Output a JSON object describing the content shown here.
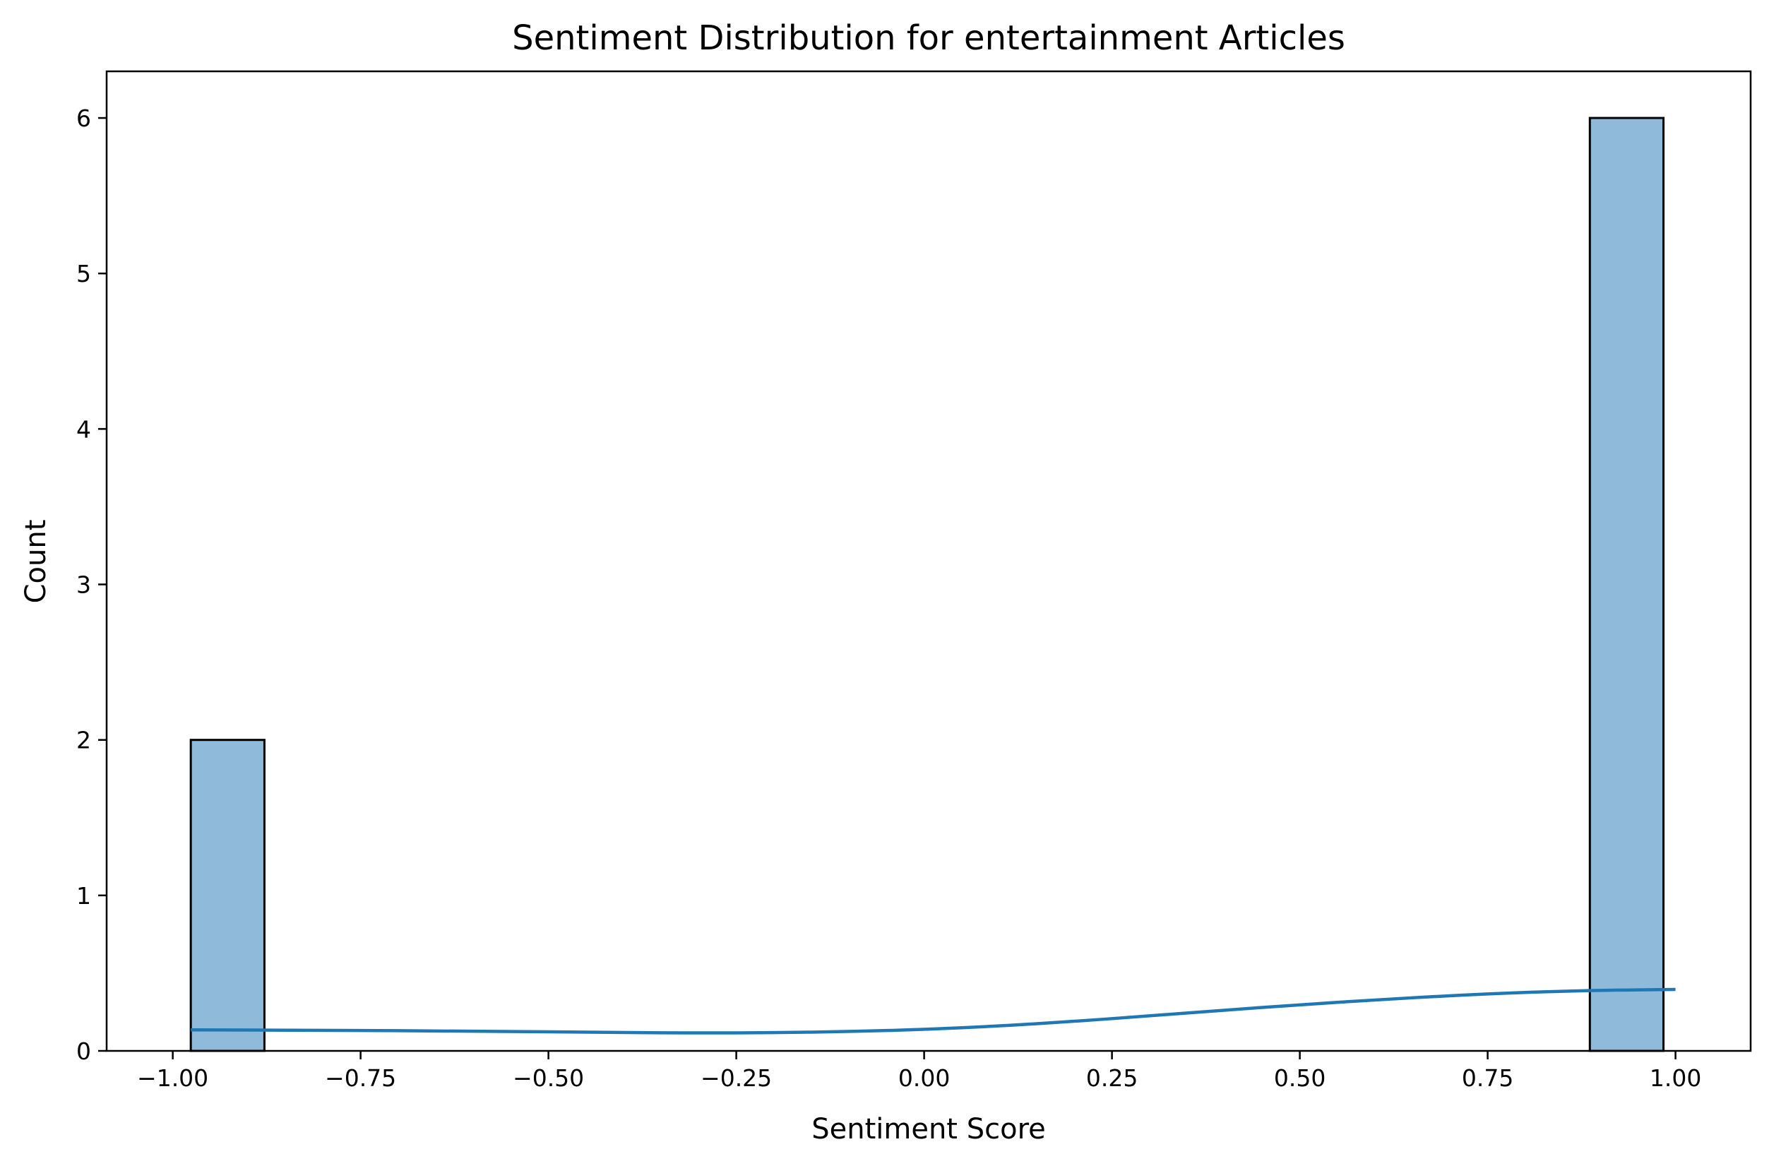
{
  "chart_data": {
    "type": "bar",
    "title": "Sentiment Distribution for entertainment Articles",
    "xlabel": "Sentiment Score",
    "ylabel": "Count",
    "xlim": [
      -1.088,
      1.1
    ],
    "ylim": [
      0,
      6.3
    ],
    "x_ticks": [
      -1.0,
      -0.75,
      -0.5,
      -0.25,
      0.0,
      0.25,
      0.5,
      0.75,
      1.0
    ],
    "x_tick_labels": [
      "−1.00",
      "−0.75",
      "−0.50",
      "−0.25",
      "0.00",
      "0.25",
      "0.50",
      "0.75",
      "1.00"
    ],
    "y_ticks": [
      0,
      1,
      2,
      3,
      4,
      5,
      6
    ],
    "y_tick_labels": [
      "0",
      "1",
      "2",
      "3",
      "4",
      "5",
      "6"
    ],
    "bins": [
      {
        "x0": -0.976,
        "x1": -0.878,
        "count": 2
      },
      {
        "x0": -0.878,
        "x1": -0.78,
        "count": 0
      },
      {
        "x0": -0.78,
        "x1": -0.682,
        "count": 0
      },
      {
        "x0": -0.682,
        "x1": -0.584,
        "count": 0
      },
      {
        "x0": -0.584,
        "x1": -0.486,
        "count": 0
      },
      {
        "x0": -0.486,
        "x1": -0.388,
        "count": 0
      },
      {
        "x0": -0.388,
        "x1": -0.29,
        "count": 0
      },
      {
        "x0": -0.29,
        "x1": -0.192,
        "count": 0
      },
      {
        "x0": -0.192,
        "x1": -0.094,
        "count": 0
      },
      {
        "x0": -0.094,
        "x1": 0.004,
        "count": 0
      },
      {
        "x0": 0.004,
        "x1": 0.102,
        "count": 0
      },
      {
        "x0": 0.102,
        "x1": 0.2,
        "count": 0
      },
      {
        "x0": 0.2,
        "x1": 0.298,
        "count": 0
      },
      {
        "x0": 0.298,
        "x1": 0.396,
        "count": 0
      },
      {
        "x0": 0.396,
        "x1": 0.494,
        "count": 0
      },
      {
        "x0": 0.494,
        "x1": 0.592,
        "count": 0
      },
      {
        "x0": 0.592,
        "x1": 0.69,
        "count": 0
      },
      {
        "x0": 0.69,
        "x1": 0.788,
        "count": 0
      },
      {
        "x0": 0.788,
        "x1": 0.886,
        "count": 0
      },
      {
        "x0": 0.886,
        "x1": 0.984,
        "count": 6
      }
    ],
    "kde": {
      "x": [
        -0.976,
        -0.8,
        -0.6,
        -0.4,
        -0.3,
        -0.2,
        -0.1,
        0.0,
        0.1,
        0.2,
        0.3,
        0.4,
        0.5,
        0.6,
        0.7,
        0.8,
        0.9,
        1.0
      ],
      "y": [
        0.135,
        0.133,
        0.127,
        0.118,
        0.115,
        0.117,
        0.124,
        0.138,
        0.16,
        0.19,
        0.225,
        0.262,
        0.297,
        0.328,
        0.355,
        0.377,
        0.39,
        0.395
      ]
    },
    "colors": {
      "bar_fill": "#8fbad9",
      "bar_edge": "#000000",
      "kde_line": "#1f77b4"
    },
    "grid": false,
    "legend": "none"
  }
}
